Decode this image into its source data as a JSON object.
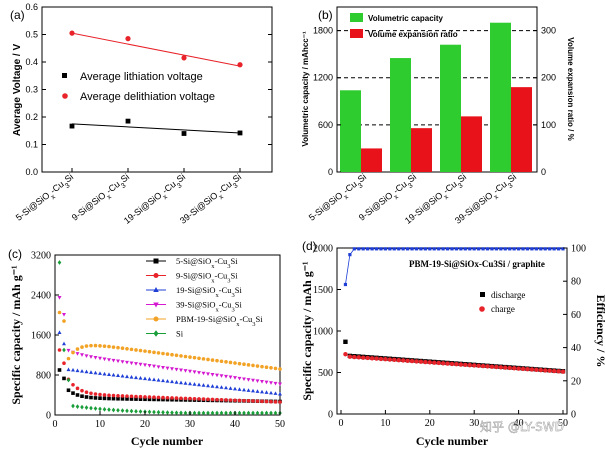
{
  "watermark": "知乎 @LY-SWD",
  "chart_data": [
    {
      "panel": "(a)",
      "type": "scatter",
      "ylabel": "Average Voltage / V",
      "xlabel": "",
      "ylim": [
        0.0,
        0.6
      ],
      "yticks": [
        "0.0",
        "0.1",
        "0.2",
        "0.3",
        "0.4",
        "0.5",
        "0.6"
      ],
      "categories": [
        "5-Si@SiOx-Cu3Si",
        "9-Si@SiOx-Cu3Si",
        "19-Si@SiOx-Cu3Si",
        "39-Si@SiOx-Cu3Si"
      ],
      "series": [
        {
          "name": "Average lithiation voltage",
          "color": "#000000",
          "marker": "square",
          "values": [
            0.167,
            0.185,
            0.14,
            0.142
          ],
          "fit": [
            0.175,
            0.142
          ]
        },
        {
          "name": "Average delithiation voltage",
          "color": "#e8232a",
          "marker": "circle",
          "values": [
            0.505,
            0.485,
            0.415,
            0.39
          ],
          "fit": [
            0.505,
            0.385
          ]
        }
      ]
    },
    {
      "panel": "(b)",
      "type": "bar",
      "ylabel": "Volumetric capacity / mAhcc⁻¹",
      "y2label": "Volume expansion ratio / %",
      "ylim": [
        0,
        2100
      ],
      "y2lim": [
        0,
        350
      ],
      "yticks": [
        "0",
        "600",
        "1200",
        "1800"
      ],
      "y2ticks": [
        "0",
        "100",
        "200",
        "300"
      ],
      "categories": [
        "5-Si@SiOx-Cu3Si",
        "9-Si@SiOx-Cu3Si",
        "19-Si@SiOx-Cu3Si",
        "39-Si@SiOx-Cu3Si"
      ],
      "series": [
        {
          "name": "Volumetric capacity",
          "color": "#2ecc2e",
          "axis": "left",
          "values": [
            1040,
            1450,
            1620,
            1900
          ]
        },
        {
          "name": "Volume expansion ratio",
          "color": "#e8131a",
          "axis": "right",
          "values": [
            50,
            93,
            118,
            180
          ]
        }
      ]
    },
    {
      "panel": "(c)",
      "type": "scatter",
      "xlabel": "Cycle number",
      "ylabel": "Specific capacity / mAh g⁻¹",
      "xlim": [
        0,
        50
      ],
      "ylim": [
        0,
        3200
      ],
      "xticks": [
        "0",
        "10",
        "20",
        "30",
        "40",
        "50"
      ],
      "yticks": [
        "0",
        "800",
        "1600",
        "2400",
        "3200"
      ],
      "series": [
        {
          "name": "5-Si@SiOx-Cu3Si",
          "color": "#000000",
          "marker": "square",
          "start": 900,
          "plateau": 340,
          "end": 270
        },
        {
          "name": "9-Si@SiOx-Cu3Si",
          "color": "#e8232a",
          "marker": "circle",
          "start": 1300,
          "plateau": 420,
          "end": 260
        },
        {
          "name": "19-Si@SiOx-Cu3Si",
          "color": "#1f3fd6",
          "marker": "triangle-up",
          "start": 1650,
          "plateau": 900,
          "end": 420
        },
        {
          "name": "39-Si@SiOx-Cu3Si",
          "color": "#d419d0",
          "marker": "triangle-down",
          "start": 2350,
          "plateau": 1220,
          "end": 620
        },
        {
          "name": "PBM-19-Si@SiOx-Cu3Si",
          "color": "#f2a224",
          "marker": "circle",
          "start": 2050,
          "plateau": 1480,
          "end": 920
        },
        {
          "name": "Si",
          "color": "#1a9e3a",
          "marker": "diamond",
          "start": 3050,
          "plateau": 180,
          "end": 40
        }
      ]
    },
    {
      "panel": "(d)",
      "type": "scatter",
      "title": "PBM-19-Si@SiOx-Cu3Si / graphite",
      "xlabel": "Cycle number",
      "ylabel": "Specific capacity / mAh g⁻¹",
      "y2label": "Efficiency / %",
      "xlim": [
        0,
        50
      ],
      "ylim": [
        0,
        2000
      ],
      "y2lim": [
        0,
        100
      ],
      "xticks": [
        "0",
        "10",
        "20",
        "30",
        "40",
        "50"
      ],
      "yticks": [
        "0",
        "500",
        "1000",
        "1500",
        "2000"
      ],
      "y2ticks": [
        "0",
        "20",
        "40",
        "60",
        "80",
        "100"
      ],
      "series": [
        {
          "name": "discharge",
          "color": "#000000",
          "marker": "square",
          "first": 870,
          "start": 700,
          "end": 515
        },
        {
          "name": "charge",
          "color": "#e8232a",
          "marker": "circle",
          "first": 720,
          "start": 690,
          "end": 510
        },
        {
          "name": "Efficiency",
          "color": "#1f3fd6",
          "marker": "square",
          "axis": "right",
          "first": 78,
          "second": 96,
          "plateau": 99.5
        }
      ]
    }
  ]
}
